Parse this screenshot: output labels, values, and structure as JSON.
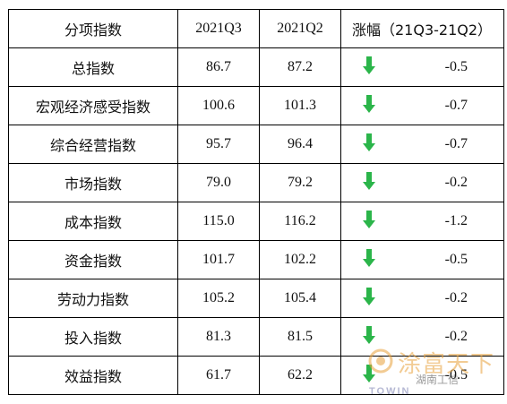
{
  "table": {
    "headers": {
      "name": "分项指数",
      "q3": "2021Q3",
      "q2": "2021Q2",
      "change": "涨幅（21Q3-21Q2）"
    },
    "rows": [
      {
        "name": "总指数",
        "q3": "86.7",
        "q2": "87.2",
        "change": "-0.5",
        "trend": "down"
      },
      {
        "name": "宏观经济感受指数",
        "q3": "100.6",
        "q2": "101.3",
        "change": "-0.7",
        "trend": "down"
      },
      {
        "name": "综合经营指数",
        "q3": "95.7",
        "q2": "96.4",
        "change": "-0.7",
        "trend": "down"
      },
      {
        "name": "市场指数",
        "q3": "79.0",
        "q2": "79.2",
        "change": "-0.2",
        "trend": "down"
      },
      {
        "name": "成本指数",
        "q3": "115.0",
        "q2": "116.2",
        "change": "-1.2",
        "trend": "down"
      },
      {
        "name": "资金指数",
        "q3": "101.7",
        "q2": "102.2",
        "change": "-0.5",
        "trend": "down"
      },
      {
        "name": "劳动力指数",
        "q3": "105.2",
        "q2": "105.4",
        "change": "-0.2",
        "trend": "down"
      },
      {
        "name": "投入指数",
        "q3": "81.3",
        "q2": "81.5",
        "change": "-0.2",
        "trend": "down"
      },
      {
        "name": "效益指数",
        "q3": "61.7",
        "q2": "62.2",
        "change": "-0.5",
        "trend": "down"
      }
    ],
    "arrow_color": "#2bb54a",
    "arrow_icon": "down-arrow-icon"
  },
  "watermark": {
    "brand": "涂富天下",
    "caption": "湖南工信",
    "latin": "TOWIN",
    "color": "#e9a23b"
  }
}
